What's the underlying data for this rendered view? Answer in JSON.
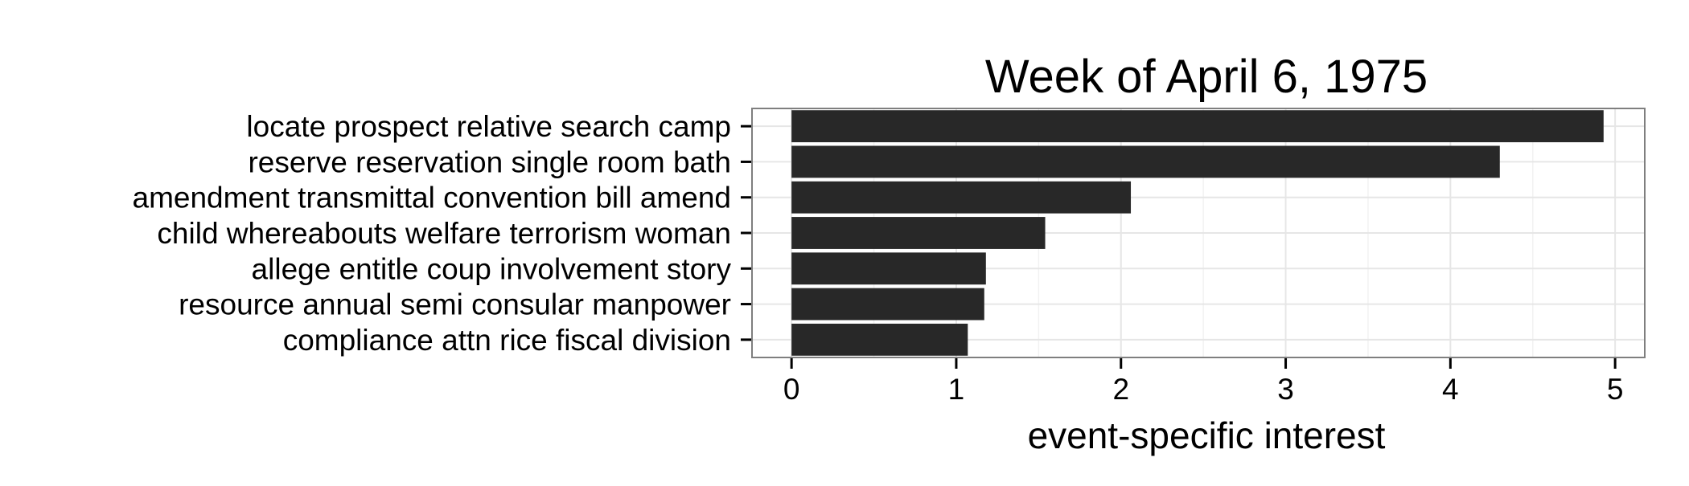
{
  "chart_data": {
    "type": "bar",
    "orientation": "horizontal",
    "title": "Week of April 6, 1975",
    "xlabel": "event-specific interest",
    "ylabel": "",
    "categories": [
      "locate prospect relative search camp",
      "reserve reservation single room bath",
      "amendment transmittal convention bill amend",
      "child whereabouts welfare terrorism woman",
      "allege entitle coup involvement story",
      "resource annual semi consular manpower",
      "compliance attn rice fiscal division"
    ],
    "values": [
      4.93,
      4.3,
      2.06,
      1.54,
      1.18,
      1.17,
      1.07
    ],
    "xlim": [
      -0.24,
      5.18
    ],
    "xticks": [
      "0",
      "1",
      "2",
      "3",
      "4",
      "5"
    ],
    "grid": true,
    "legend": "none",
    "colors": {
      "bar": "#282828",
      "panel_border": "#7f7f7f",
      "grid": "#e6e6e6",
      "text": "#000000"
    }
  }
}
